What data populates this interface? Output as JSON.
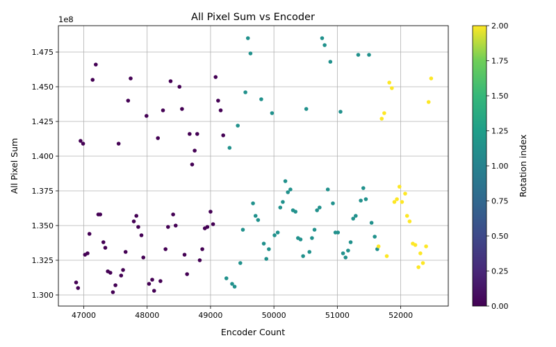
{
  "chart_data": {
    "type": "scatter",
    "title": "All Pixel Sum vs Encoder",
    "xlabel": "Encoder Count",
    "ylabel": "All Pixel Sum",
    "y_offset_text": "1e8",
    "xlim": [
      46600,
      52750
    ],
    "ylim": [
      129.2,
      149.4
    ],
    "xticks": [
      47000,
      48000,
      49000,
      50000,
      51000,
      52000
    ],
    "yticks": [
      130.0,
      132.5,
      135.0,
      137.5,
      140.0,
      142.5,
      145.0,
      147.5
    ],
    "ytick_labels": [
      "1.300",
      "1.325",
      "1.350",
      "1.375",
      "1.400",
      "1.425",
      "1.450",
      "1.475"
    ],
    "grid": true,
    "colorbar": {
      "label": "Rotation index",
      "cmap": "viridis",
      "range": [
        0,
        2
      ],
      "ticks": [
        0.0,
        0.25,
        0.5,
        0.75,
        1.0,
        1.25,
        1.5,
        1.75,
        2.0
      ],
      "tick_labels": [
        "0.00",
        "0.25",
        "0.50",
        "0.75",
        "1.00",
        "1.25",
        "1.50",
        "1.75",
        "2.00"
      ]
    },
    "series": [
      {
        "rotation_index": 0,
        "color": "#440154",
        "points": [
          [
            46880,
            130.9
          ],
          [
            46910,
            130.5
          ],
          [
            46950,
            141.1
          ],
          [
            46990,
            140.9
          ],
          [
            47020,
            132.9
          ],
          [
            47060,
            133.0
          ],
          [
            47090,
            134.4
          ],
          [
            47140,
            145.5
          ],
          [
            47190,
            146.6
          ],
          [
            47230,
            135.8
          ],
          [
            47260,
            135.8
          ],
          [
            47310,
            133.8
          ],
          [
            47340,
            133.4
          ],
          [
            47380,
            131.7
          ],
          [
            47420,
            131.6
          ],
          [
            47460,
            130.2
          ],
          [
            47500,
            130.7
          ],
          [
            47550,
            140.9
          ],
          [
            47590,
            131.4
          ],
          [
            47620,
            131.8
          ],
          [
            47660,
            133.1
          ],
          [
            47700,
            144.0
          ],
          [
            47740,
            145.6
          ],
          [
            47790,
            135.3
          ],
          [
            47830,
            135.7
          ],
          [
            47860,
            134.9
          ],
          [
            47910,
            134.3
          ],
          [
            47940,
            132.7
          ],
          [
            47990,
            142.9
          ],
          [
            48030,
            130.8
          ],
          [
            48080,
            131.1
          ],
          [
            48110,
            130.3
          ],
          [
            48170,
            141.3
          ],
          [
            48210,
            131.0
          ],
          [
            48250,
            143.3
          ],
          [
            48290,
            133.3
          ],
          [
            48330,
            134.9
          ],
          [
            48370,
            145.4
          ],
          [
            48410,
            135.8
          ],
          [
            48450,
            135.0
          ],
          [
            48510,
            145.0
          ],
          [
            48550,
            143.4
          ],
          [
            48590,
            132.9
          ],
          [
            48630,
            131.5
          ],
          [
            48670,
            141.6
          ],
          [
            48710,
            139.4
          ],
          [
            48750,
            140.4
          ],
          [
            48790,
            141.6
          ],
          [
            48830,
            132.5
          ],
          [
            48870,
            133.3
          ],
          [
            48910,
            134.8
          ],
          [
            48950,
            134.9
          ],
          [
            49000,
            136.0
          ],
          [
            49040,
            135.1
          ],
          [
            49080,
            145.7
          ],
          [
            49120,
            144.0
          ],
          [
            49160,
            143.3
          ],
          [
            49200,
            141.5
          ]
        ]
      },
      {
        "rotation_index": 1,
        "color": "#21918c",
        "points": [
          [
            49250,
            131.2
          ],
          [
            49300,
            140.6
          ],
          [
            49340,
            130.8
          ],
          [
            49380,
            130.6
          ],
          [
            49430,
            142.2
          ],
          [
            49470,
            132.3
          ],
          [
            49510,
            134.7
          ],
          [
            49550,
            144.6
          ],
          [
            49590,
            148.5
          ],
          [
            49630,
            147.4
          ],
          [
            49670,
            136.6
          ],
          [
            49710,
            135.7
          ],
          [
            49750,
            135.4
          ],
          [
            49800,
            144.1
          ],
          [
            49840,
            133.7
          ],
          [
            49880,
            132.6
          ],
          [
            49920,
            133.3
          ],
          [
            49970,
            143.1
          ],
          [
            50010,
            134.3
          ],
          [
            50060,
            134.5
          ],
          [
            50100,
            136.3
          ],
          [
            50140,
            136.7
          ],
          [
            50180,
            138.2
          ],
          [
            50220,
            137.4
          ],
          [
            50260,
            137.6
          ],
          [
            50300,
            136.1
          ],
          [
            50340,
            136.0
          ],
          [
            50380,
            134.1
          ],
          [
            50420,
            134.0
          ],
          [
            50460,
            132.8
          ],
          [
            50510,
            143.4
          ],
          [
            50560,
            133.1
          ],
          [
            50600,
            134.1
          ],
          [
            50640,
            134.7
          ],
          [
            50680,
            136.1
          ],
          [
            50720,
            136.3
          ],
          [
            50760,
            148.5
          ],
          [
            50800,
            148.0
          ],
          [
            50850,
            137.6
          ],
          [
            50890,
            146.8
          ],
          [
            50930,
            136.6
          ],
          [
            50970,
            134.5
          ],
          [
            51010,
            134.5
          ],
          [
            51050,
            143.2
          ],
          [
            51090,
            133.0
          ],
          [
            51130,
            132.7
          ],
          [
            51170,
            133.2
          ],
          [
            51210,
            133.8
          ],
          [
            51250,
            135.5
          ],
          [
            51290,
            135.7
          ],
          [
            51330,
            147.3
          ],
          [
            51370,
            136.8
          ],
          [
            51410,
            137.7
          ],
          [
            51450,
            136.9
          ],
          [
            51500,
            147.3
          ],
          [
            51540,
            135.2
          ],
          [
            51590,
            134.2
          ],
          [
            51630,
            133.3
          ]
        ]
      },
      {
        "rotation_index": 2,
        "color": "#fde725",
        "points": [
          [
            51650,
            133.5
          ],
          [
            51700,
            142.7
          ],
          [
            51740,
            143.1
          ],
          [
            51780,
            132.8
          ],
          [
            51820,
            145.3
          ],
          [
            51860,
            144.9
          ],
          [
            51900,
            136.7
          ],
          [
            51940,
            136.9
          ],
          [
            51980,
            137.8
          ],
          [
            52020,
            136.7
          ],
          [
            52070,
            137.3
          ],
          [
            52100,
            135.7
          ],
          [
            52140,
            135.3
          ],
          [
            52190,
            133.7
          ],
          [
            52230,
            133.6
          ],
          [
            52280,
            132.0
          ],
          [
            52310,
            133.0
          ],
          [
            52350,
            132.3
          ],
          [
            52400,
            133.5
          ],
          [
            52440,
            143.9
          ],
          [
            52480,
            145.6
          ]
        ]
      }
    ]
  }
}
